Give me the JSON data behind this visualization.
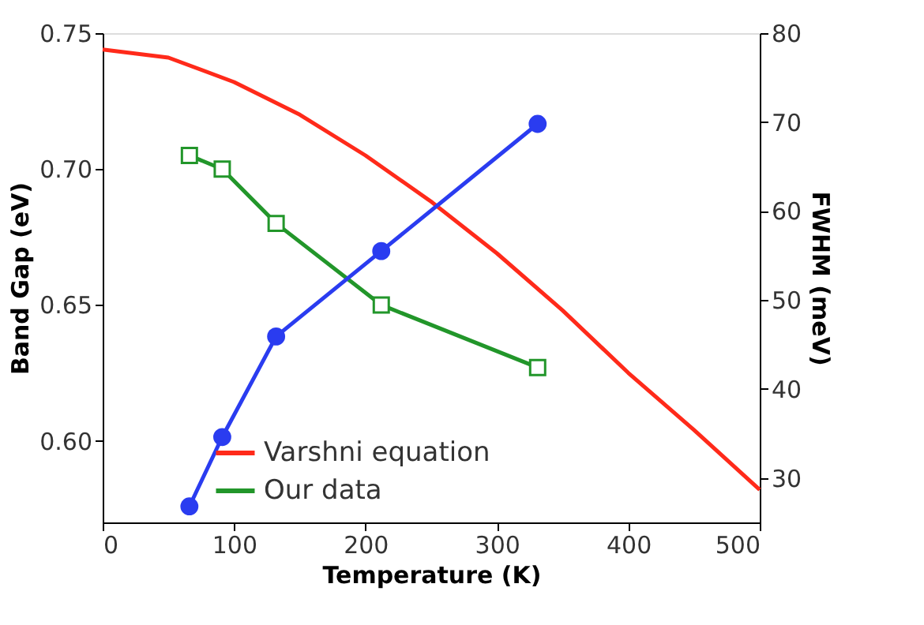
{
  "chart_data": {
    "type": "line",
    "xlabel": "Temperature (K)",
    "ylabel": "Band Gap (eV)",
    "y2label": "FWHM (meV)",
    "xlim": [
      0,
      500
    ],
    "xticks": [
      0,
      100,
      200,
      300,
      400,
      500
    ],
    "ylim": [
      0.57,
      0.75
    ],
    "yticks": [
      {
        "value": 0.6,
        "label": "0.60"
      },
      0.65,
      {
        "value": 0.7,
        "label": "0.70"
      },
      0.75
    ],
    "y2lim": [
      25,
      80
    ],
    "y2ticks": [
      30,
      40,
      50,
      60,
      70,
      80
    ],
    "grid": false,
    "legend": "bottom",
    "series": [
      {
        "name": "Varshni equation",
        "color": "#ff2a1a",
        "marker": "none",
        "x": [
          0,
          50,
          100,
          150,
          200,
          250,
          300,
          350,
          400,
          450,
          500
        ],
        "values": [
          0.744,
          0.741,
          0.732,
          0.72,
          0.705,
          0.688,
          0.669,
          0.648,
          0.625,
          0.604,
          0.582
        ]
      },
      {
        "name": "Our data",
        "color": "#22962a",
        "marker": "square",
        "x": [
          66,
          91,
          132,
          212,
          331
        ],
        "values": [
          0.705,
          0.7,
          0.68,
          0.65,
          0.627
        ]
      },
      {
        "color": "#2a3cf0",
        "marker": "circle",
        "axis": "y2",
        "x": [
          66,
          91,
          132,
          212,
          331
        ],
        "values": [
          26.8,
          34.6,
          45.9,
          55.5,
          69.8
        ]
      }
    ]
  }
}
